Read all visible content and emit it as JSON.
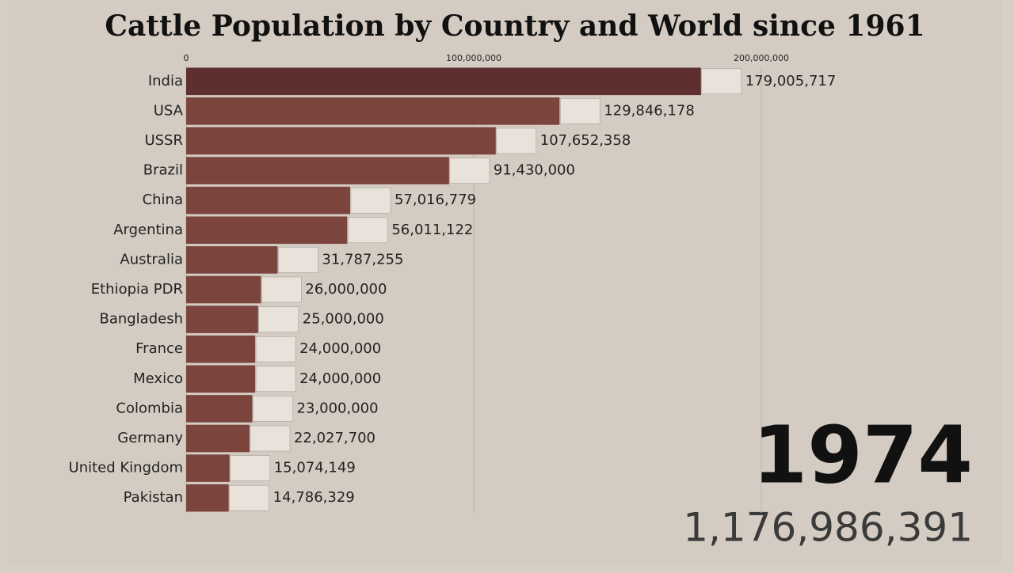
{
  "chart_data": {
    "type": "bar",
    "orientation": "horizontal",
    "title": "Cattle Population by Country and World since 1961",
    "categories": [
      "India",
      "USA",
      "USSR",
      "Brazil",
      "China",
      "Argentina",
      "Australia",
      "Ethiopia PDR",
      "Bangladesh",
      "France",
      "Mexico",
      "Colombia",
      "Germany",
      "United Kingdom",
      "Pakistan"
    ],
    "values": [
      179005717,
      129846178,
      107652358,
      91430000,
      57016779,
      56011122,
      31787255,
      26000000,
      25000000,
      24000000,
      24000000,
      23000000,
      22027700,
      15074149,
      14786329
    ],
    "value_labels": [
      "179,005,717",
      "129,846,178",
      "107,652,358",
      "91,430,000",
      "57,016,779",
      "56,011,122",
      "31,787,255",
      "26,000,000",
      "25,000,000",
      "24,000,000",
      "24,000,000",
      "23,000,000",
      "22,027,700",
      "15,074,149",
      "14,786,329"
    ],
    "colors": [
      "#5f2e2f",
      "#7b453d",
      "#7b453d",
      "#7b453d",
      "#7b453d",
      "#7b453d",
      "#7b453d",
      "#7b453d",
      "#7b453d",
      "#7b453d",
      "#7b453d",
      "#7b453d",
      "#7b453d",
      "#7b453d",
      "#7b453d"
    ],
    "xlim": [
      0,
      200000000
    ],
    "xticks": [
      0,
      {
        "value": 100000000,
        "label": "100,000,000"
      },
      {
        "value": 200000000,
        "label": "200,000,000"
      }
    ],
    "grid": true,
    "year": "1974",
    "total": "1,176,986,391"
  }
}
